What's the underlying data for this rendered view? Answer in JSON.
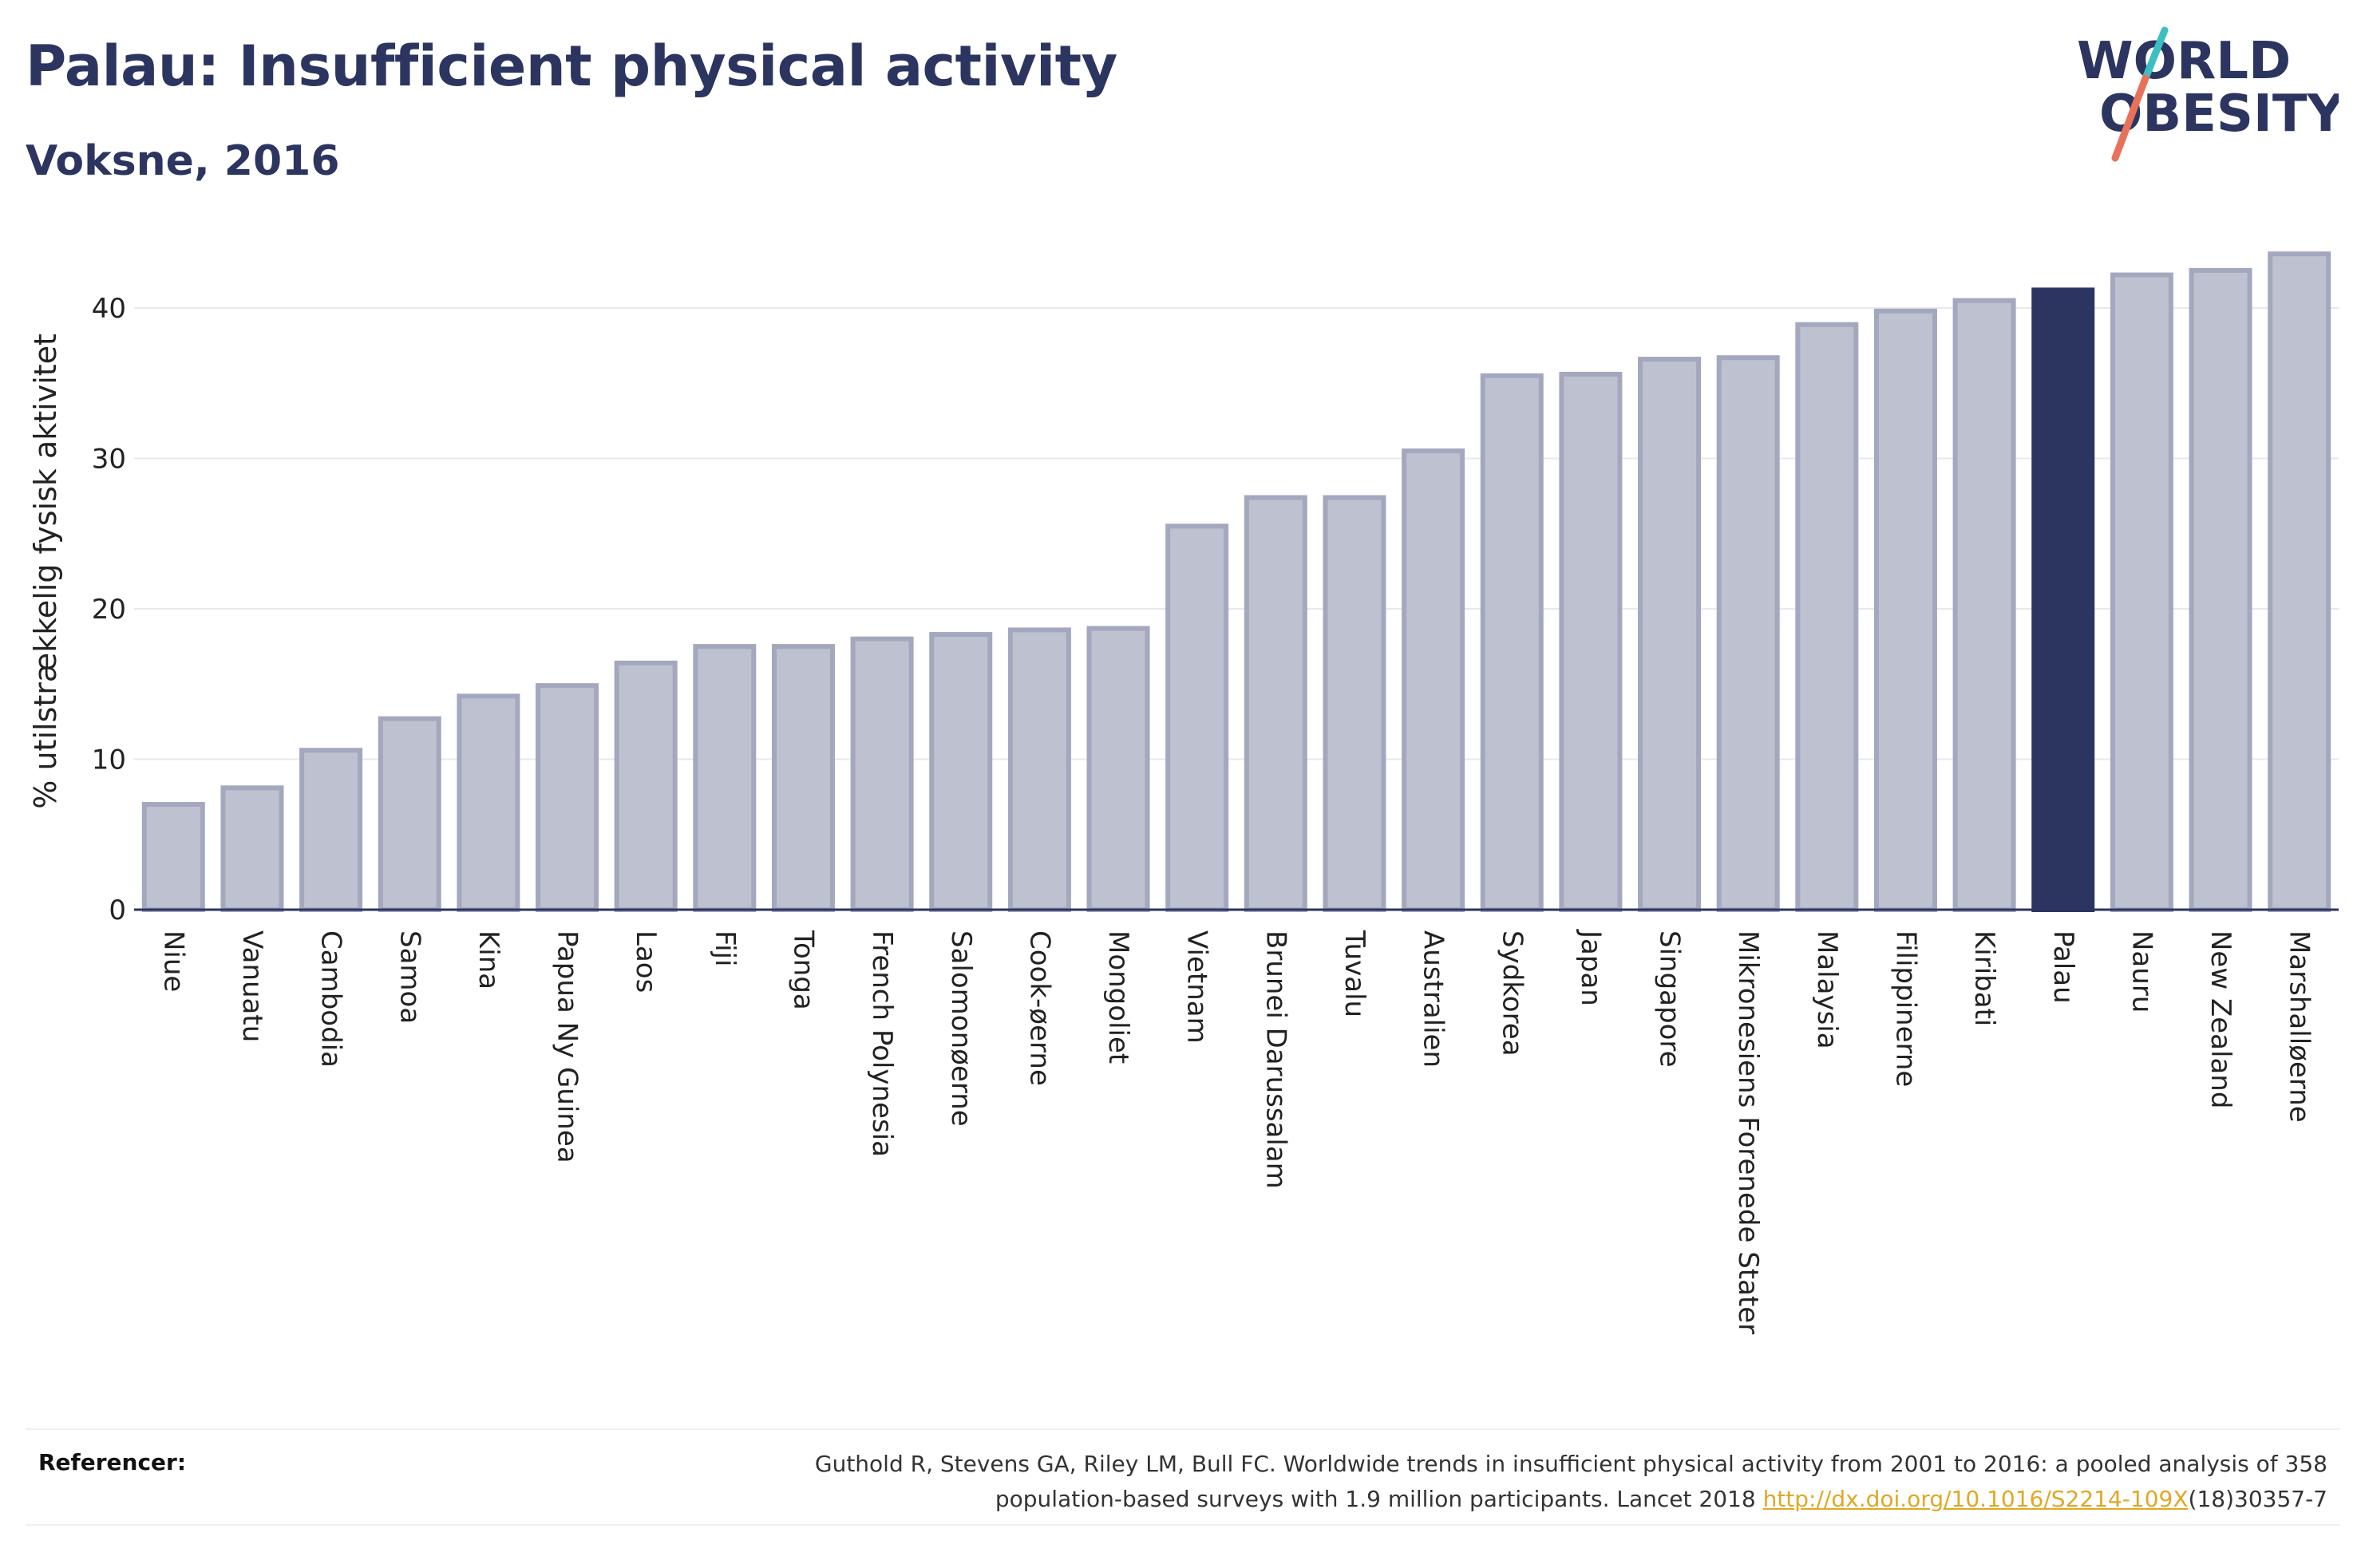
{
  "header": {
    "title": "Palau: Insufficient physical activity",
    "subtitle": "Voksne, 2016"
  },
  "logo": {
    "line1": "WORLD",
    "line2": "OBESITY",
    "text_color": "#2c3560",
    "slash_colors": [
      "#e8715a",
      "#3dbfc1"
    ]
  },
  "colors": {
    "bar_default": "#bec1cf",
    "bar_border": "#a4a8be",
    "bar_highlight": "#2c3560",
    "grid": "#e8e9ee",
    "axis": "#2c3560"
  },
  "chart_data": {
    "type": "bar",
    "title": "Palau: Insufficient physical activity",
    "subtitle": "Voksne, 2016",
    "xlabel": "",
    "ylabel": "% utilstrækkelig fysisk aktivitet",
    "ylim": [
      0,
      45
    ],
    "yticks": [
      0,
      10,
      20,
      30,
      40
    ],
    "grid": true,
    "highlight": "Palau",
    "categories": [
      "Niue",
      "Vanuatu",
      "Cambodia",
      "Samoa",
      "Kina",
      "Papua Ny Guinea",
      "Laos",
      "Fiji",
      "Tonga",
      "French Polynesia",
      "Salomonøerne",
      "Cook-øerne",
      "Mongoliet",
      "Vietnam",
      "Brunei Darussalam",
      "Tuvalu",
      "Australien",
      "Sydkorea",
      "Japan",
      "Singapore",
      "Mikronesiens Forenede Stater",
      "Malaysia",
      "Filippinerne",
      "Kiribati",
      "Palau",
      "Nauru",
      "New Zealand",
      "Marshalløerne"
    ],
    "values": [
      7.0,
      8.1,
      10.6,
      12.7,
      14.2,
      14.9,
      16.4,
      17.5,
      17.5,
      18.0,
      18.3,
      18.6,
      18.7,
      25.5,
      27.4,
      27.4,
      30.5,
      35.5,
      35.6,
      36.6,
      36.7,
      38.9,
      39.8,
      40.5,
      41.2,
      42.2,
      42.5,
      43.6
    ]
  },
  "references": {
    "label": "Referencer:",
    "text_line1": "Guthold R, Stevens GA, Riley LM, Bull FC. Worldwide trends in insufficient physical activity from 2001 to 2016: a pooled analysis of 358",
    "text_line2_prefix": "population-based surveys with 1.9 million participants. Lancet 2018 ",
    "link": "http://dx.doi.org/10.1016/S2214-109X",
    "text_line2_suffix": "(18)30357-7"
  }
}
